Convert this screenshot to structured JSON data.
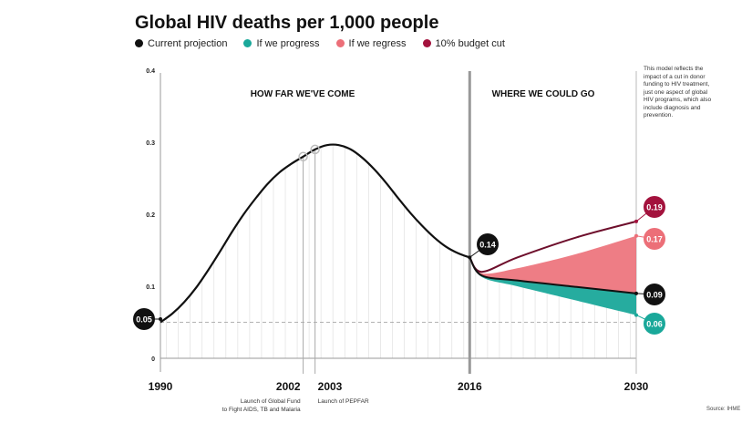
{
  "title": "Global HIV deaths per 1,000 people",
  "legend": [
    {
      "label": "Current projection",
      "color": "#111111"
    },
    {
      "label": "If we progress",
      "color": "#1aa89a"
    },
    {
      "label": "If we regress",
      "color": "#ec6f78"
    },
    {
      "label": "10% budget cut",
      "color": "#a3123d"
    }
  ],
  "note": "This model reflects the impact of a cut in donor funding to HIV treatment, just one aspect of global HIV programs, which also include diagnosis and prevention.",
  "source": "Source: IHME",
  "chart_data": {
    "type": "line",
    "title": "Global HIV deaths per 1,000 people",
    "section_labels": [
      "HOW FAR WE'VE COME",
      "WHERE WE COULD GO"
    ],
    "ylim": [
      0,
      0.4
    ],
    "yticks": [
      "0",
      "0.1",
      "0.2",
      "0.3",
      "0.4"
    ],
    "xlim": [
      1990,
      2030
    ],
    "xticks": [
      "1990",
      "2002",
      "2003",
      "2016",
      "2030"
    ],
    "annotations": [
      {
        "year": 2002,
        "text": "Launch of Global Fund to Fight AIDS, TB and Malaria"
      },
      {
        "year": 2003,
        "text": "Launch of PEPFAR"
      }
    ],
    "reference_line": 0.05,
    "history": {
      "x": [
        1990,
        1991,
        1992,
        1993,
        1994,
        1995,
        1996,
        1997,
        1998,
        1999,
        2000,
        2001,
        2002,
        2003,
        2004,
        2005,
        2006,
        2007,
        2008,
        2009,
        2010,
        2011,
        2012,
        2013,
        2014,
        2015,
        2016
      ],
      "y": [
        0.05,
        0.062,
        0.078,
        0.098,
        0.122,
        0.148,
        0.175,
        0.2,
        0.222,
        0.242,
        0.258,
        0.27,
        0.28,
        0.29,
        0.296,
        0.296,
        0.29,
        0.278,
        0.262,
        0.243,
        0.222,
        0.202,
        0.184,
        0.168,
        0.155,
        0.146,
        0.14
      ]
    },
    "series": [
      {
        "name": "Current projection",
        "x": [
          2016,
          2017,
          2020,
          2025,
          2030
        ],
        "y": [
          0.14,
          0.115,
          0.108,
          0.099,
          0.09
        ],
        "label": "0.09"
      },
      {
        "name": "If we progress",
        "x": [
          2016,
          2017,
          2020,
          2025,
          2030
        ],
        "y": [
          0.14,
          0.113,
          0.1,
          0.08,
          0.06
        ],
        "label": "0.06"
      },
      {
        "name": "If we regress",
        "x": [
          2016,
          2017,
          2020,
          2025,
          2030
        ],
        "y": [
          0.14,
          0.118,
          0.125,
          0.145,
          0.17
        ],
        "label": "0.17"
      },
      {
        "name": "10% budget cut",
        "x": [
          2016,
          2017,
          2020,
          2025,
          2030
        ],
        "y": [
          0.14,
          0.12,
          0.14,
          0.168,
          0.19
        ],
        "label": "0.19"
      }
    ],
    "point_labels": [
      {
        "x": 1990,
        "text": "0.05"
      },
      {
        "x": 2016,
        "text": "0.14"
      }
    ]
  }
}
